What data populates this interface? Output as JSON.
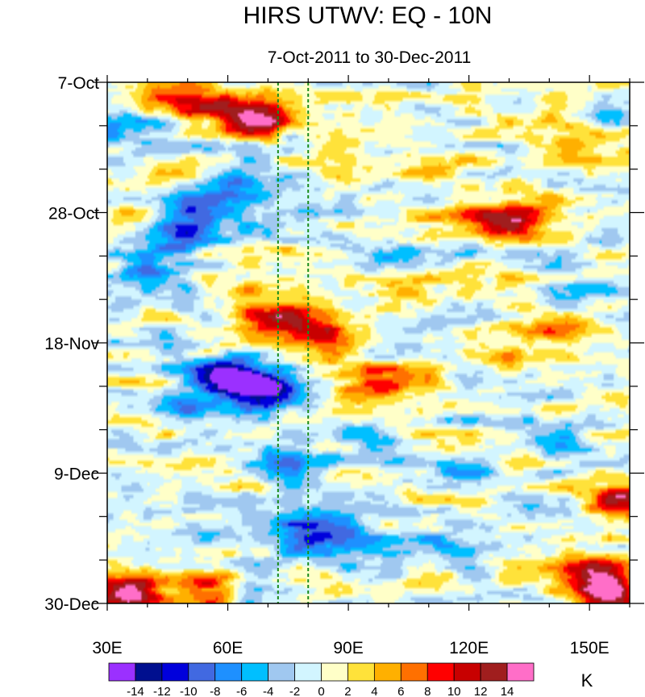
{
  "chart_data": {
    "type": "heatmap",
    "title": "HIRS UTWV: EQ - 10N",
    "subtitle": "7-Oct-2011 to 30-Dec-2011",
    "x_axis": {
      "range": [
        30,
        160
      ],
      "ticks": [
        {
          "value": 30,
          "label": "30E"
        },
        {
          "value": 60,
          "label": "60E"
        },
        {
          "value": 90,
          "label": "90E"
        },
        {
          "value": 120,
          "label": "120E"
        },
        {
          "value": 150,
          "label": "150E"
        }
      ]
    },
    "y_axis": {
      "range_days": [
        0,
        84
      ],
      "direction": "top-to-bottom",
      "ticks": [
        {
          "value": 0,
          "label": "7-Oct"
        },
        {
          "value": 21,
          "label": "28-Oct"
        },
        {
          "value": 42,
          "label": "18-Nov"
        },
        {
          "value": 63,
          "label": "9-Dec"
        },
        {
          "value": 84,
          "label": "30-Dec"
        }
      ]
    },
    "reference_lines": [
      {
        "orientation": "vertical",
        "x": 72.5,
        "style": "dashed",
        "color": "#1a8c1a"
      },
      {
        "orientation": "vertical",
        "x": 80,
        "style": "dashed",
        "color": "#1a8c1a"
      }
    ],
    "colorbar": {
      "unit": "K",
      "levels": [
        -14,
        -12,
        -10,
        -8,
        -6,
        -4,
        -2,
        0,
        2,
        4,
        6,
        8,
        10,
        12,
        14
      ],
      "level_labels": [
        "-14",
        "-12",
        "-10",
        "-8",
        "-6",
        "-4",
        "-2",
        "0",
        "2",
        "4",
        "6",
        "8",
        "10",
        "12",
        "14"
      ],
      "colors": [
        "#9b30ff",
        "#000f8f",
        "#0000dc",
        "#4169e1",
        "#1e90ff",
        "#00bfff",
        "#a0c8f0",
        "#d2f5ff",
        "#ffffc8",
        "#ffe23a",
        "#ffb000",
        "#ff7000",
        "#ff0000",
        "#c80000",
        "#a01e1e",
        "#ff6ec8"
      ]
    },
    "features": [
      {
        "lon": 68,
        "day": 6,
        "value": 15
      },
      {
        "lon": 55,
        "day": 4,
        "value": 9
      },
      {
        "lon": 45,
        "day": 2,
        "value": 6
      },
      {
        "lon": 62,
        "day": 16,
        "value": -8
      },
      {
        "lon": 52,
        "day": 20,
        "value": -10
      },
      {
        "lon": 50,
        "day": 25,
        "value": -11
      },
      {
        "lon": 40,
        "day": 30,
        "value": -9
      },
      {
        "lon": 76,
        "day": 38,
        "value": 13
      },
      {
        "lon": 83,
        "day": 41,
        "value": 8
      },
      {
        "lon": 66,
        "day": 36,
        "value": 5
      },
      {
        "lon": 58,
        "day": 47,
        "value": -13
      },
      {
        "lon": 65,
        "day": 49,
        "value": -12
      },
      {
        "lon": 72,
        "day": 50,
        "value": -10
      },
      {
        "lon": 50,
        "day": 52,
        "value": -8
      },
      {
        "lon": 75,
        "day": 61,
        "value": -7
      },
      {
        "lon": 88,
        "day": 74,
        "value": -10
      },
      {
        "lon": 80,
        "day": 72,
        "value": -7
      },
      {
        "lon": 128,
        "day": 23,
        "value": 10
      },
      {
        "lon": 135,
        "day": 21,
        "value": 7
      },
      {
        "lon": 115,
        "day": 22,
        "value": 5
      },
      {
        "lon": 95,
        "day": 50,
        "value": 7
      },
      {
        "lon": 100,
        "day": 48,
        "value": 5
      },
      {
        "lon": 105,
        "day": 34,
        "value": 6
      },
      {
        "lon": 38,
        "day": 82,
        "value": 10
      },
      {
        "lon": 33,
        "day": 84,
        "value": 8
      },
      {
        "lon": 55,
        "day": 82,
        "value": 7
      },
      {
        "lon": 155,
        "day": 82,
        "value": 14
      },
      {
        "lon": 150,
        "day": 79,
        "value": 9
      },
      {
        "lon": 158,
        "day": 67,
        "value": 11
      },
      {
        "lon": 145,
        "day": 10,
        "value": 6
      },
      {
        "lon": 32,
        "day": 7,
        "value": -6
      },
      {
        "lon": 110,
        "day": 75,
        "value": -6
      },
      {
        "lon": 120,
        "day": 63,
        "value": -5
      },
      {
        "lon": 140,
        "day": 57,
        "value": -5
      },
      {
        "lon": 95,
        "day": 57,
        "value": -4
      },
      {
        "lon": 140,
        "day": 40,
        "value": 5
      },
      {
        "lon": 125,
        "day": 45,
        "value": 4
      },
      {
        "lon": 110,
        "day": 13,
        "value": 4
      },
      {
        "lon": 100,
        "day": 28,
        "value": -3
      },
      {
        "lon": 150,
        "day": 33,
        "value": -4
      }
    ]
  }
}
